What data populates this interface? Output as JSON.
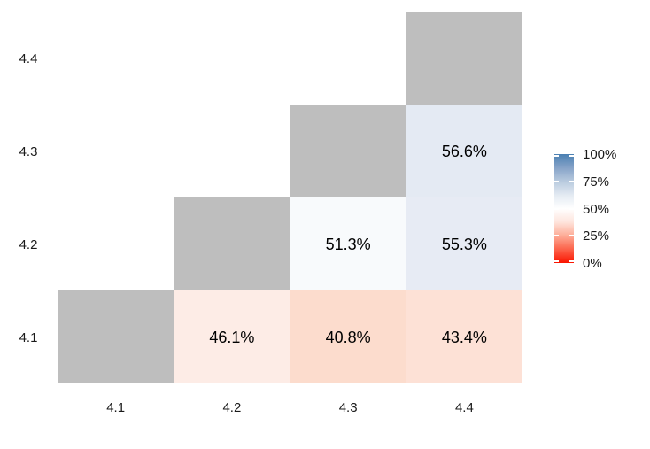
{
  "chart_data": {
    "type": "heatmap",
    "title": "",
    "x_categories": [
      "4.1",
      "4.2",
      "4.3",
      "4.4"
    ],
    "y_categories_top_to_bottom": [
      "4.4",
      "4.3",
      "4.2",
      "4.1"
    ],
    "na_color": "#bebebe",
    "cells": [
      {
        "row": "4.4",
        "col": "4.4",
        "value": null,
        "label": "",
        "color": "#bebebe"
      },
      {
        "row": "4.3",
        "col": "4.3",
        "value": null,
        "label": "",
        "color": "#bebebe"
      },
      {
        "row": "4.3",
        "col": "4.4",
        "value": 56.6,
        "label": "56.6%",
        "color": "#e4eaf3"
      },
      {
        "row": "4.2",
        "col": "4.2",
        "value": null,
        "label": "",
        "color": "#bebebe"
      },
      {
        "row": "4.2",
        "col": "4.3",
        "value": 51.3,
        "label": "51.3%",
        "color": "#f8fafc"
      },
      {
        "row": "4.2",
        "col": "4.4",
        "value": 55.3,
        "label": "55.3%",
        "color": "#e7ebf4"
      },
      {
        "row": "4.1",
        "col": "4.1",
        "value": null,
        "label": "",
        "color": "#bebebe"
      },
      {
        "row": "4.1",
        "col": "4.2",
        "value": 46.1,
        "label": "46.1%",
        "color": "#fdece6"
      },
      {
        "row": "4.1",
        "col": "4.3",
        "value": 40.8,
        "label": "40.8%",
        "color": "#fcdccd"
      },
      {
        "row": "4.1",
        "col": "4.4",
        "value": 43.4,
        "label": "43.4%",
        "color": "#fde1d6"
      }
    ],
    "legend": {
      "tick_labels": [
        "100%",
        "75%",
        "50%",
        "25%",
        "0%"
      ],
      "tick_values": [
        100,
        75,
        50,
        25,
        0
      ],
      "gradient_high_color": "#4a80b2",
      "gradient_mid_color": "#ffffff",
      "gradient_low_color": "#fa1400",
      "value_range": [
        0,
        100
      ]
    },
    "layout_hints": {
      "grid": "off",
      "legend_position": "right",
      "lower_triangle_shown": true,
      "diagonal_is_na_gray": true
    }
  }
}
